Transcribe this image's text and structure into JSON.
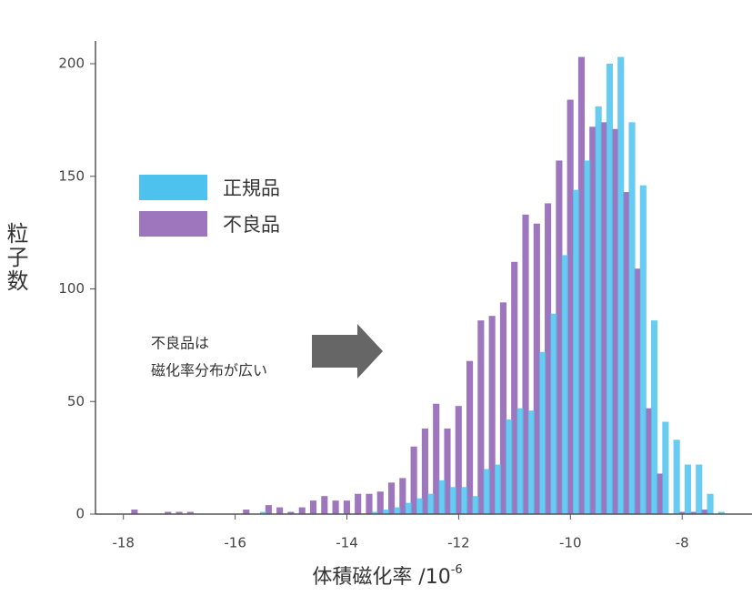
{
  "chart_data": {
    "type": "histogram",
    "x_label": "体積磁化率 /10",
    "x_label_exponent": "-6",
    "y_label": "粒子数",
    "annotation": [
      "不良品は",
      "磁化率分布が広い"
    ],
    "bins": [
      -18,
      -17.8,
      -17.6,
      -17.4,
      -17.2,
      -17,
      -16.8,
      -16.6,
      -16.4,
      -16.2,
      -16,
      -15.8,
      -15.6,
      -15.4,
      -15.2,
      -15,
      -14.8,
      -14.6,
      -14.4,
      -14.2,
      -14,
      -13.8,
      -13.6,
      -13.4,
      -13.2,
      -13,
      -12.8,
      -12.6,
      -12.4,
      -12.2,
      -12,
      -11.8,
      -11.6,
      -11.4,
      -11.2,
      -11,
      -10.8,
      -10.6,
      -10.4,
      -10.2,
      -10,
      -9.8,
      -9.6,
      -9.4,
      -9.2,
      -9,
      -8.8,
      -8.6,
      -8.4,
      -8.2,
      -8,
      -7.8,
      -7.6,
      -7.4,
      -7.2
    ],
    "series": [
      {
        "name": "不良品",
        "color": "#9e76bd",
        "values": [
          0,
          2,
          0,
          0,
          1,
          1,
          1,
          0,
          0,
          0,
          0,
          2,
          0,
          4,
          3,
          1,
          3,
          6,
          8,
          6,
          6,
          9,
          9,
          10,
          14,
          16,
          30,
          38,
          49,
          38,
          48,
          68,
          86,
          88,
          94,
          112,
          133,
          129,
          138,
          157,
          184,
          203,
          172,
          174,
          171,
          143,
          109,
          47,
          18,
          0,
          1,
          1,
          2,
          0
        ]
      },
      {
        "name": "正規品",
        "color": "#4ec2ef",
        "values": [
          0,
          0,
          0,
          0,
          0,
          0,
          0,
          0,
          0,
          0,
          0,
          0,
          1,
          0,
          0,
          0,
          0,
          0,
          0,
          0,
          0,
          0,
          1,
          2,
          3,
          5,
          7,
          9,
          15,
          12,
          12,
          8,
          20,
          22,
          42,
          47,
          46,
          72,
          89,
          115,
          144,
          157,
          181,
          200,
          203,
          174,
          146,
          86,
          41,
          33,
          22,
          22,
          9,
          1
        ]
      }
    ],
    "xlim": [
      -18.5,
      -6.75
    ],
    "ylim": [
      0,
      200
    ],
    "xticks": [
      -18,
      -16,
      -14,
      -12,
      -10,
      -8
    ],
    "yticks": [
      0,
      50,
      100,
      150,
      200
    ],
    "legend": "upper left"
  }
}
